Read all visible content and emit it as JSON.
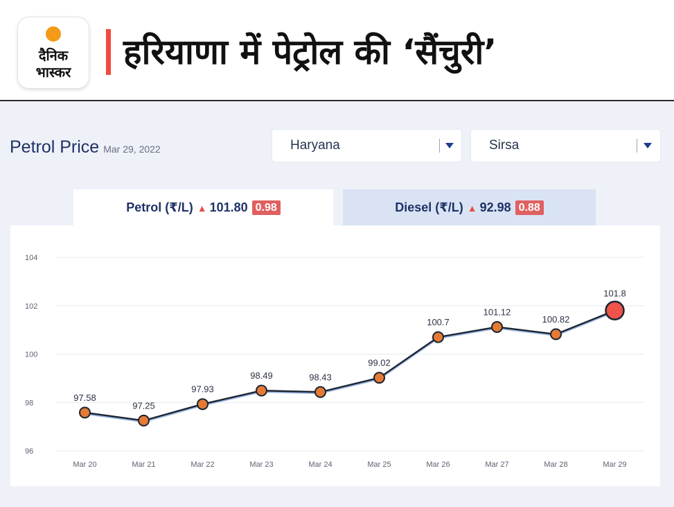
{
  "brand": {
    "logo_line1": "दैनिक",
    "logo_line2": "भास्कर",
    "colors": {
      "sun": "#f59a18",
      "accent_bar": "#ef4b3c"
    }
  },
  "headline": "हरियाणा में पेट्रोल की ‘सैंचुरी’",
  "widget": {
    "title": "Petrol Price",
    "date": "Mar 29, 2022",
    "state_select": {
      "value": "Haryana",
      "icon": "caret-down-icon"
    },
    "city_select": {
      "value": "Sirsa",
      "icon": "caret-down-icon"
    },
    "tabs": [
      {
        "label": "Petrol (₹/L)",
        "trend_icon": "▲",
        "price": "101.80",
        "change": "0.98",
        "active": true
      },
      {
        "label": "Diesel (₹/L)",
        "trend_icon": "▲",
        "price": "92.98",
        "change": "0.88",
        "active": false
      }
    ],
    "colors": {
      "line": "#1b2433",
      "point": "#e57a35",
      "latest_point": "#ef5349",
      "up": "#e2514a",
      "badge": "#e06060"
    }
  },
  "chart_data": {
    "type": "line",
    "title": "",
    "xlabel": "",
    "ylabel": "",
    "categories": [
      "Mar 20",
      "Mar 21",
      "Mar 22",
      "Mar 23",
      "Mar 24",
      "Mar 25",
      "Mar 26",
      "Mar 27",
      "Mar 28",
      "Mar 29"
    ],
    "series": [
      {
        "values": [
          97.58,
          97.25,
          97.93,
          98.49,
          98.43,
          99.02,
          100.7,
          101.12,
          100.82,
          101.8
        ]
      }
    ],
    "data_labels": [
      "97.58",
      "97.25",
      "97.93",
      "98.49",
      "98.43",
      "99.02",
      "100.7",
      "101.12",
      "100.82",
      "101.8"
    ],
    "ylim": [
      96,
      104
    ],
    "yticks": [
      96,
      98,
      100,
      102,
      104
    ],
    "ytick_labels": [
      "96",
      "98",
      "100",
      "102",
      "104"
    ],
    "grid": true,
    "legend": "none"
  }
}
